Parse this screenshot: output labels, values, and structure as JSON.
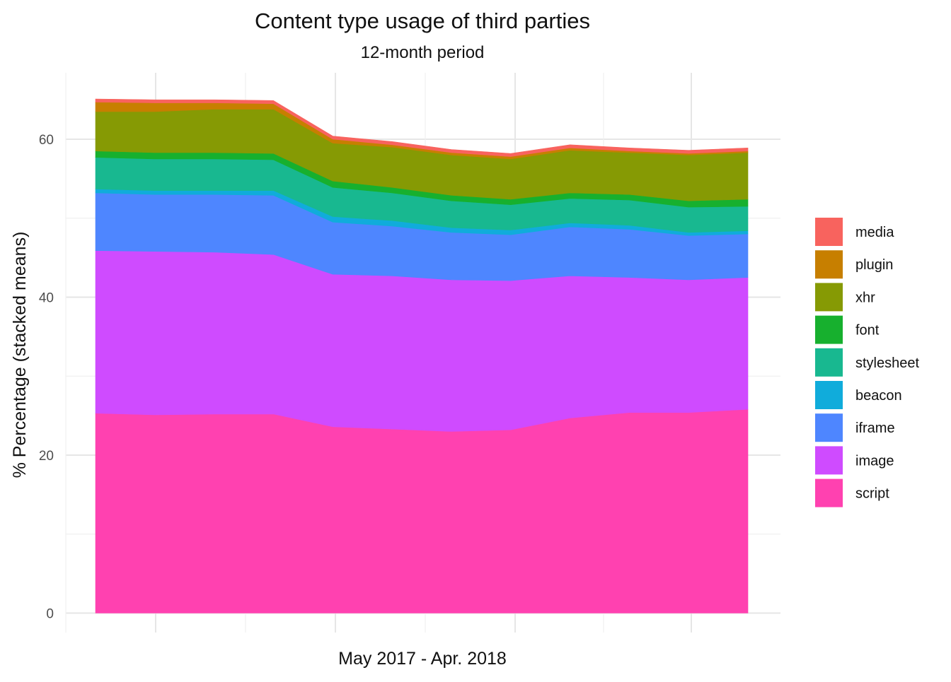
{
  "chart_data": {
    "type": "area",
    "stacked": true,
    "title": "Content type usage of third parties",
    "subtitle": "12-month period",
    "xlabel": "May 2017 - Apr. 2018",
    "ylabel": "% Percentage (stacked means)",
    "x": [
      1,
      2,
      3,
      4,
      5,
      6,
      7,
      8,
      9,
      10,
      11,
      12
    ],
    "ylim": [
      0,
      68
    ],
    "y_ticks": [
      0,
      20,
      40,
      60
    ],
    "grid": true,
    "legend_position": "right",
    "series": [
      {
        "name": "script",
        "color": "#FF41B0",
        "values": [
          25.3,
          25.1,
          25.2,
          25.2,
          23.6,
          23.3,
          23.0,
          23.2,
          24.7,
          25.4,
          25.4,
          25.8
        ]
      },
      {
        "name": "image",
        "color": "#CF4BFF",
        "values": [
          20.6,
          20.7,
          20.5,
          20.2,
          19.3,
          19.4,
          19.2,
          18.9,
          18.0,
          17.1,
          16.8,
          16.7
        ]
      },
      {
        "name": "iframe",
        "color": "#4E86FF",
        "values": [
          7.3,
          7.2,
          7.3,
          7.5,
          6.6,
          6.3,
          6.0,
          5.8,
          6.2,
          6.1,
          5.6,
          5.5
        ]
      },
      {
        "name": "beacon",
        "color": "#10ACDB",
        "values": [
          0.5,
          0.5,
          0.5,
          0.6,
          0.7,
          0.7,
          0.6,
          0.6,
          0.5,
          0.5,
          0.4,
          0.4
        ]
      },
      {
        "name": "stylesheet",
        "color": "#18B890",
        "values": [
          4.0,
          4.0,
          4.0,
          3.9,
          3.7,
          3.5,
          3.4,
          3.2,
          3.1,
          3.2,
          3.2,
          3.1
        ]
      },
      {
        "name": "font",
        "color": "#17B02E",
        "values": [
          0.8,
          0.8,
          0.8,
          0.8,
          0.8,
          0.7,
          0.7,
          0.7,
          0.7,
          0.7,
          0.8,
          0.9
        ]
      },
      {
        "name": "xhr",
        "color": "#869A04",
        "values": [
          5.0,
          5.2,
          5.5,
          5.6,
          4.8,
          5.1,
          5.1,
          5.1,
          5.4,
          5.3,
          5.8,
          5.9
        ]
      },
      {
        "name": "plugin",
        "color": "#C77F00",
        "values": [
          1.2,
          1.1,
          0.8,
          0.7,
          0.5,
          0.3,
          0.3,
          0.3,
          0.3,
          0.2,
          0.2,
          0.2
        ]
      },
      {
        "name": "media",
        "color": "#F8635E",
        "values": [
          0.4,
          0.4,
          0.4,
          0.4,
          0.4,
          0.4,
          0.4,
          0.4,
          0.4,
          0.4,
          0.4,
          0.4
        ]
      }
    ]
  }
}
